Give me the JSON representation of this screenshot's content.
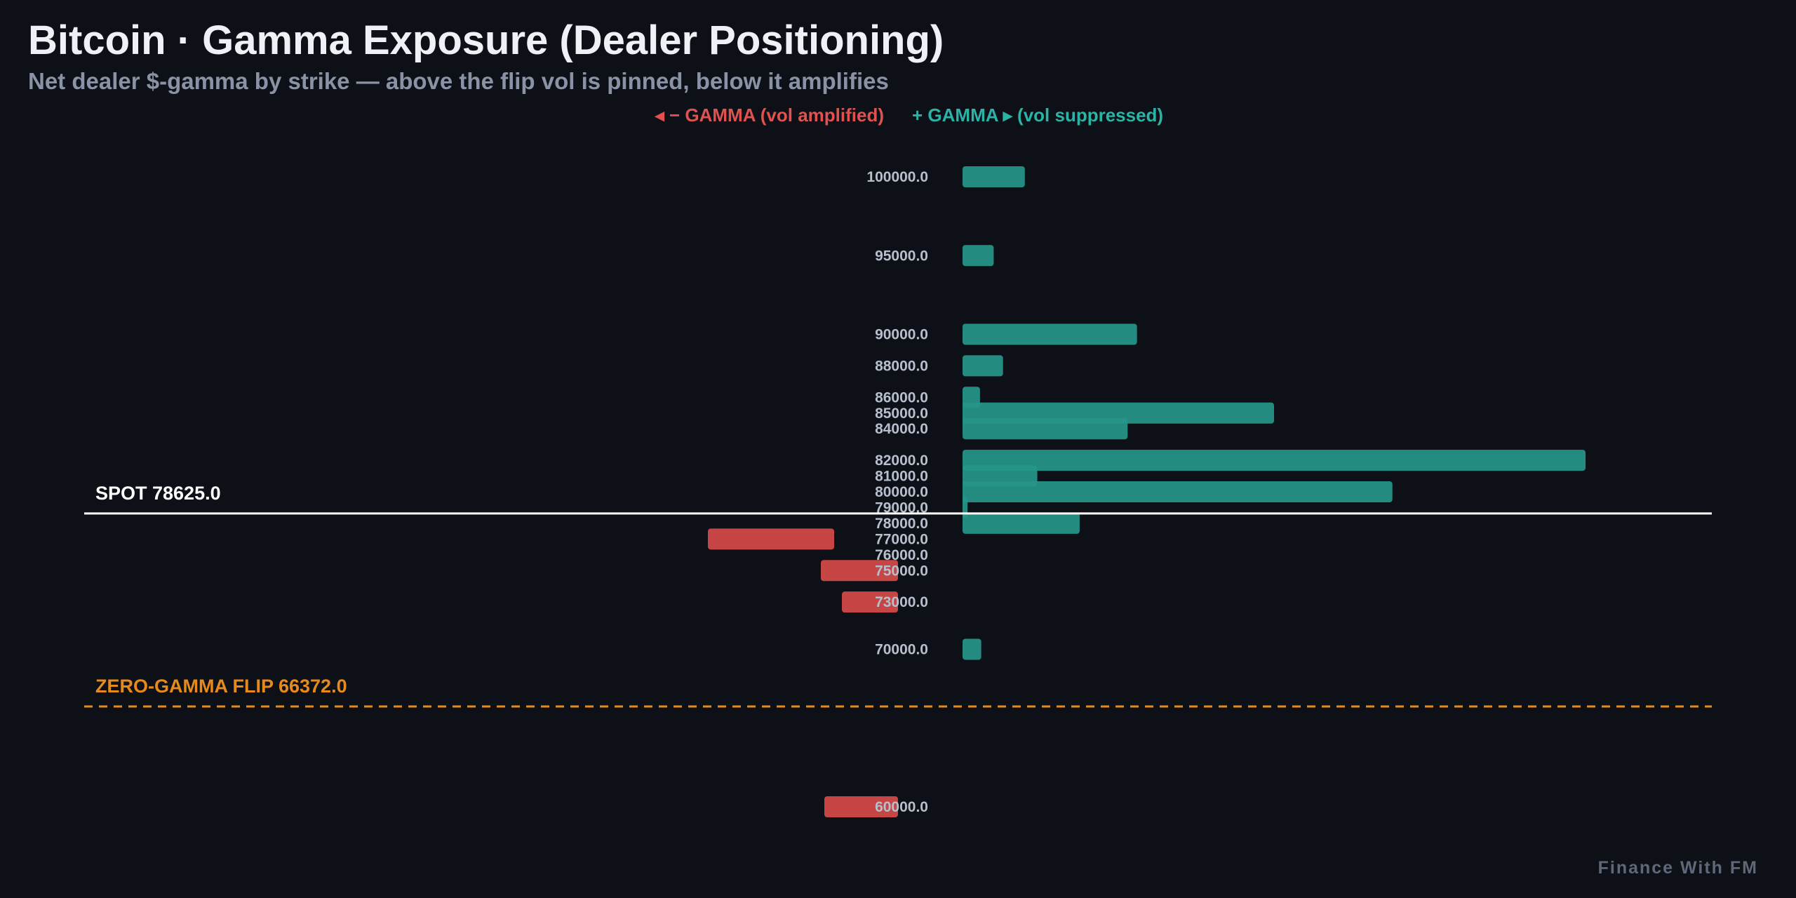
{
  "chart_data": {
    "type": "bar",
    "orientation": "horizontal",
    "title": "Bitcoin · Gamma Exposure (Dealer Positioning)",
    "subtitle": "Net dealer $-gamma by strike — above the flip vol is pinned, below it amplifies",
    "legend": {
      "negative_label": "◂ − GAMMA (vol amplified)",
      "positive_label": "+ GAMMA ▸ (vol suppressed)",
      "placement": "top-center"
    },
    "ylim": [
      57000,
      102000
    ],
    "grid": false,
    "strikes": [
      {
        "label": "100000.0",
        "strike": 100000,
        "value": 0.1
      },
      {
        "label": "95000.0",
        "strike": 95000,
        "value": 0.05
      },
      {
        "label": "90000.0",
        "strike": 90000,
        "value": 0.28
      },
      {
        "label": "88000.0",
        "strike": 88000,
        "value": 0.065
      },
      {
        "label": "86000.0",
        "strike": 86000,
        "value": 0.028
      },
      {
        "label": "85000.0",
        "strike": 85000,
        "value": 0.5
      },
      {
        "label": "84000.0",
        "strike": 84000,
        "value": 0.265
      },
      {
        "label": "82000.0",
        "strike": 82000,
        "value": 1.0
      },
      {
        "label": "81000.0",
        "strike": 81000,
        "value": 0.12
      },
      {
        "label": "80000.0",
        "strike": 80000,
        "value": 0.69
      },
      {
        "label": "79000.0",
        "strike": 79000,
        "value": 0.008
      },
      {
        "label": "78000.0",
        "strike": 78000,
        "value": 0.188
      },
      {
        "label": "77000.0",
        "strike": 77000,
        "value": -0.18
      },
      {
        "label": "76000.0",
        "strike": 76000,
        "value": 0.0
      },
      {
        "label": "75000.0",
        "strike": 75000,
        "value": -0.11
      },
      {
        "label": "73000.0",
        "strike": 73000,
        "value": -0.08
      },
      {
        "label": "70000.0",
        "strike": 70000,
        "value": 0.03
      },
      {
        "label": "60000.0",
        "strike": 60000,
        "value": -0.105
      }
    ],
    "spot": {
      "label": "SPOT 78625.0",
      "value": 78625.0
    },
    "flip": {
      "label": "ZERO-GAMMA FLIP 66372.0",
      "value": 66372.0
    },
    "watermark": "Finance With FM",
    "colors": {
      "background": "#0d1017",
      "title": "#eef1f5",
      "subtitle": "#8a93a6",
      "positive": "#26968b",
      "negative": "#d04a47",
      "negative_text": "#e0524f",
      "positive_text": "#2bb3a5",
      "strike_label": "#b7bfcc",
      "spot_line": "#ffffff",
      "flip_line": "#e68a1c",
      "watermark": "#5f6878"
    }
  }
}
